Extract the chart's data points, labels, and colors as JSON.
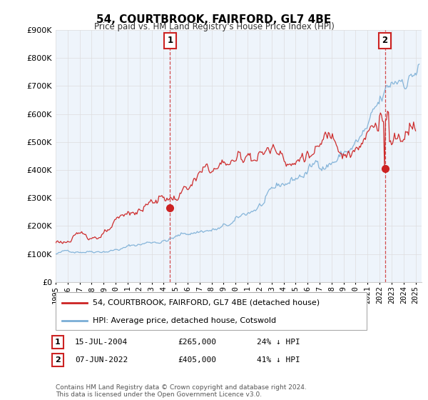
{
  "title": "54, COURTBROOK, FAIRFORD, GL7 4BE",
  "subtitle": "Price paid vs. HM Land Registry's House Price Index (HPI)",
  "ylim": [
    0,
    900000
  ],
  "xlim_start": 1995.0,
  "xlim_end": 2025.5,
  "hpi_color": "#7aaed6",
  "price_color": "#cc2222",
  "marker1_year": 2004.54,
  "marker1_price_val": 265000,
  "marker2_year": 2022.44,
  "marker2_price_val": 405000,
  "legend_label1": "54, COURTBROOK, FAIRFORD, GL7 4BE (detached house)",
  "legend_label2": "HPI: Average price, detached house, Cotswold",
  "annotation1_label": "1",
  "annotation1_text": "15-JUL-2004",
  "annotation1_price": "£265,000",
  "annotation1_hpi": "24% ↓ HPI",
  "annotation2_label": "2",
  "annotation2_text": "07-JUN-2022",
  "annotation2_price": "£405,000",
  "annotation2_hpi": "41% ↓ HPI",
  "footer": "Contains HM Land Registry data © Crown copyright and database right 2024.\nThis data is licensed under the Open Government Licence v3.0.",
  "background_color": "#ffffff",
  "grid_color": "#dddddd",
  "plot_bg_color": "#eef4fb"
}
